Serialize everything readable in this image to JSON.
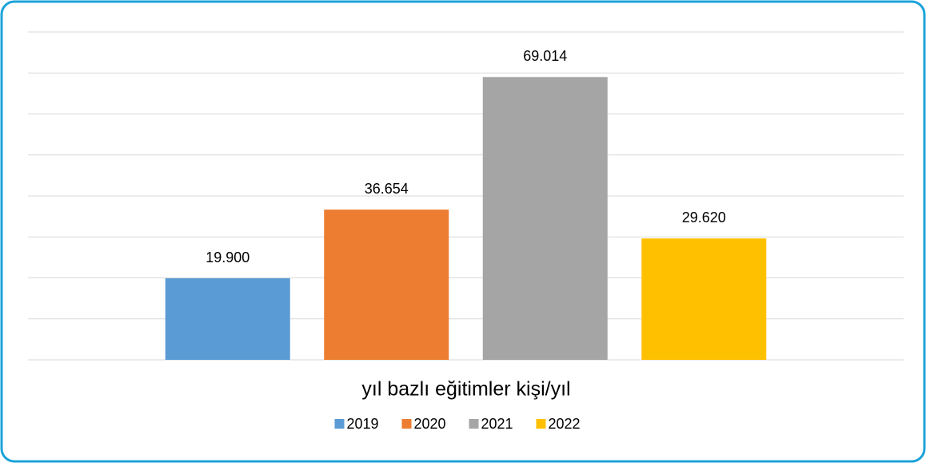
{
  "chart_data": {
    "type": "bar",
    "x_label": "yıl bazlı eğitimler kişi/yıl",
    "series": [
      {
        "name": "2019",
        "color": "#5b9bd5",
        "values": [
          19900
        ],
        "value_labels": [
          "19.900"
        ]
      },
      {
        "name": "2020",
        "color": "#ed7d31",
        "values": [
          36654
        ],
        "value_labels": [
          "36.654"
        ]
      },
      {
        "name": "2021",
        "color": "#a5a5a5",
        "values": [
          69014
        ],
        "value_labels": [
          "69.014"
        ]
      },
      {
        "name": "2022",
        "color": "#ffc000",
        "values": [
          29620
        ],
        "value_labels": [
          "29.620"
        ]
      }
    ],
    "ylim": [
      0,
      80000
    ],
    "yticks": [
      0,
      10000,
      20000,
      30000,
      40000,
      50000,
      60000,
      70000,
      80000
    ],
    "grid": true
  }
}
